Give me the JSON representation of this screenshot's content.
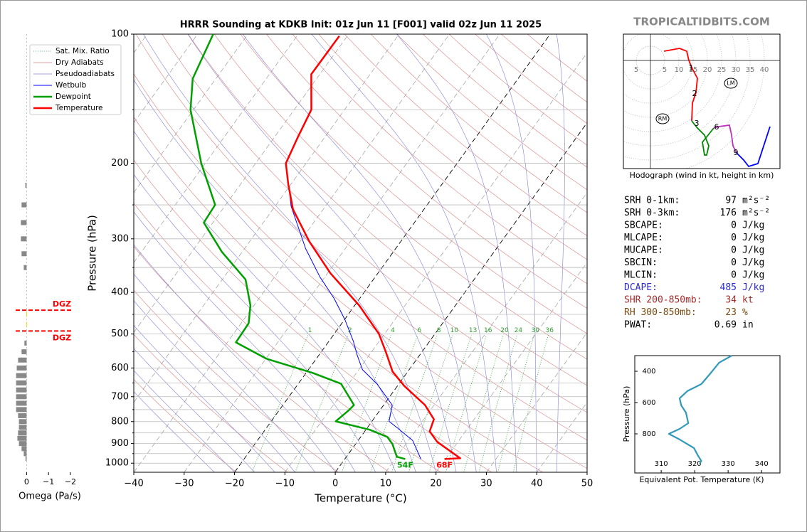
{
  "site": "TROPICALTIDBITS.COM",
  "chart_data": [
    {
      "type": "skewt",
      "title": "HRRR Sounding at KDKB Init: 01z Jun 11 [F001] valid 02z Jun 11 2025",
      "x_label": "Temperature (°C)",
      "y_label": "Pressure (hPa)",
      "log_y": true,
      "xlim": [
        -40,
        50
      ],
      "ylim": [
        1050,
        100
      ],
      "xticks": [
        {
          "value": -40,
          "label": "−40"
        },
        {
          "value": -30,
          "label": "−30"
        },
        {
          "value": -20,
          "label": "−20"
        },
        {
          "value": -10,
          "label": "−10"
        },
        0,
        10,
        20,
        30,
        40,
        50
      ],
      "yticks": [
        100,
        200,
        300,
        400,
        500,
        600,
        700,
        800,
        900,
        1000
      ],
      "yticks_minor": [
        150,
        250,
        350,
        450,
        550,
        650,
        750,
        850,
        950
      ],
      "grid": true,
      "legend": "upper left",
      "reference_lines": [
        {
          "name": "Sat. Mix. Ratio",
          "color": "#2ca02c",
          "values": [
            1,
            2,
            4,
            6,
            8,
            10,
            13,
            16,
            20,
            24,
            30,
            36
          ]
        },
        {
          "name": "Dry Adiabats",
          "color": "#d98080"
        },
        {
          "name": "Pseudoadiabats",
          "color": "#8080d9"
        }
      ],
      "series": [
        {
          "name": "Wetbulb",
          "color": "#0000ff",
          "line_width": 1,
          "pressure": [
            978,
            885,
            830,
            799,
            732,
            653,
            605,
            560,
            519,
            463,
            413,
            368,
            316,
            252,
            200
          ],
          "values": [
            15.1,
            10.8,
            6.2,
            3.4,
            1.7,
            -4.4,
            -9.3,
            -12.4,
            -15.2,
            -19.9,
            -25.1,
            -31.0,
            -37.9,
            -46.8,
            -54.0
          ]
        },
        {
          "name": "Dewpoint",
          "color": "#00a000",
          "line_width": 2.5,
          "surface_label": "54F",
          "pressure": [
            978,
            966,
            902,
            869,
            836,
            799,
            754,
            732,
            653,
            616,
            571,
            523,
            472,
            429,
            373,
            322,
            275,
            250,
            200,
            150,
            127,
            100
          ],
          "values": [
            12.0,
            10.0,
            7.3,
            5.3,
            0.8,
            -7.2,
            -6.2,
            -5.9,
            -11.5,
            -18.7,
            -29.9,
            -38.3,
            -38.5,
            -40.7,
            -45.4,
            -54.0,
            -61.8,
            -62.1,
            -70.8,
            -80.6,
            -84.6,
            -86.9
          ]
        },
        {
          "name": "Temperature",
          "color": "#ff0000",
          "line_width": 2.5,
          "surface_label": "68F",
          "pressure": [
            978,
            974,
            892,
            843,
            790,
            732,
            660,
            612,
            550,
            500,
            429,
            361,
            304,
            256,
            224,
            200,
            175,
            150,
            124,
            101
          ],
          "values": [
            19.8,
            22.8,
            15.9,
            12.9,
            12.0,
            8.2,
            1.3,
            -3.0,
            -7.2,
            -11.1,
            -19.1,
            -29.4,
            -38.2,
            -46.0,
            -50.5,
            -54.0,
            -55.3,
            -56.6,
            -61.7,
            -61.6
          ]
        }
      ]
    },
    {
      "type": "omega",
      "x_label": "Omega (Pa/s)",
      "xlim": [
        0.5,
        -2.1
      ],
      "ylim": [
        1050,
        100
      ],
      "xticks": [
        0,
        {
          "value": -1,
          "label": "−1"
        },
        {
          "value": -2,
          "label": "−2"
        }
      ],
      "color": "#888888",
      "highlight_color": "#ffd700",
      "dgz": [
        440,
        492
      ],
      "dgz_label": "DGZ",
      "dgz_color": "#ff0000",
      "pressure": [
        225,
        250,
        275,
        300,
        325,
        350,
        450,
        475,
        525,
        550,
        575,
        600,
        625,
        650,
        675,
        700,
        725,
        750,
        775,
        800,
        825,
        850,
        875,
        900,
        925,
        950,
        975
      ],
      "values": [
        0.06,
        0.23,
        0.26,
        0.26,
        0.23,
        0.13,
        0.01,
        0.01,
        0.1,
        0.23,
        0.39,
        0.45,
        0.48,
        0.48,
        0.48,
        0.48,
        0.48,
        0.48,
        0.39,
        0.35,
        0.35,
        0.39,
        0.42,
        0.35,
        0.23,
        0.13,
        0.05
      ]
    },
    {
      "type": "hodograph",
      "caption": "Hodograph (wind in kt, height in km)",
      "xlim": [
        -9.5,
        45.5
      ],
      "ylim": [
        -38,
        9.25
      ],
      "rings": [
        {
          "value": -5,
          "label": "5"
        },
        5,
        10,
        15,
        20,
        25,
        30,
        35,
        40
      ],
      "series": [
        {
          "color": "#ff0000",
          "u": [
            4.75,
            10.25,
            12.75,
            13.5,
            14.5,
            16.5,
            16,
            14.75,
            14.5
          ],
          "v": [
            3.25,
            4.25,
            3.25,
            0,
            -2.5,
            -6.25,
            -11.25,
            -15,
            -21.25
          ]
        },
        {
          "color": "#008800",
          "u": [
            14.5,
            16.5,
            19,
            20.5,
            19.75,
            19,
            18.25,
            20.25,
            22.25
          ],
          "v": [
            -21.25,
            -23.75,
            -26.25,
            -30,
            -33.25,
            -33.25,
            -28.75,
            -26.25,
            -23.75
          ]
        },
        {
          "color": "#bb33bb",
          "u": [
            22.25,
            24,
            27.75,
            28.5,
            29,
            30.25
          ],
          "v": [
            -23.75,
            -23.25,
            -22.75,
            -26.25,
            -30,
            -32.5
          ]
        },
        {
          "color": "#0000ff",
          "u": [
            30.25,
            32.75,
            34.5,
            37.75,
            42
          ],
          "v": [
            -32.5,
            -35,
            -37.25,
            -36.25,
            -23.25
          ]
        }
      ],
      "height_labels": [
        {
          "text": "1",
          "u": 14.25,
          "v": -2.75
        },
        {
          "text": "2",
          "u": 15.5,
          "v": -11.75
        },
        {
          "text": "3",
          "u": 16.25,
          "v": -22.25
        },
        {
          "text": "6",
          "u": 23.25,
          "v": -23.5
        },
        {
          "text": "9",
          "u": 30,
          "v": -32.5
        }
      ],
      "markers": [
        {
          "text": "RM",
          "u": 4.25,
          "v": -20.5
        },
        {
          "text": "LM",
          "u": 28.25,
          "v": -8
        }
      ]
    },
    {
      "type": "profile",
      "x_label": "Equivalent Pot. Temperature (K)",
      "y_label": "Pressure (hPa)",
      "xlim": [
        302.1,
        345.5
      ],
      "ylim": [
        1050,
        300
      ],
      "xticks": [
        310,
        320,
        330,
        340
      ],
      "yticks": [
        400,
        600,
        800
      ],
      "color": "#3399bb",
      "pressure": [
        300,
        345,
        414,
        482,
        527,
        573,
        618,
        664,
        732,
        768,
        800,
        836,
        891,
        936,
        973,
        991
      ],
      "values": [
        331.1,
        327.3,
        324.7,
        322,
        317.8,
        315.5,
        316,
        317.4,
        318.1,
        315.5,
        312.3,
        315.5,
        319.8,
        320.9,
        322,
        321.5
      ]
    }
  ],
  "indices": {
    "rows": [
      {
        "label": "SRH 0-1km:",
        "value": 97,
        "unit": "m²s⁻²",
        "color": "#000000"
      },
      {
        "label": "SRH 0-3km:",
        "value": 176,
        "unit": "m²s⁻²",
        "color": "#000000"
      },
      {
        "label": "SBCAPE:",
        "value": 0,
        "unit": "J/kg",
        "color": "#000000"
      },
      {
        "label": "MLCAPE:",
        "value": 0,
        "unit": "J/kg",
        "color": "#000000"
      },
      {
        "label": "MUCAPE:",
        "value": 0,
        "unit": "J/kg",
        "color": "#000000"
      },
      {
        "label": "SBCIN:",
        "value": 0,
        "unit": "J/kg",
        "color": "#000000"
      },
      {
        "label": "MLCIN:",
        "value": 0,
        "unit": "J/kg",
        "color": "#000000"
      },
      {
        "label": "DCAPE:",
        "value": 485,
        "unit": "J/kg",
        "color": "#2b2bd0"
      },
      {
        "label": "SHR 200-850mb:",
        "value": 34,
        "unit": "kt",
        "color": "#a52a2a"
      },
      {
        "label": "RH 300-850mb:",
        "value": 23,
        "unit": "%",
        "color": "#7a4a10"
      },
      {
        "label": "PWAT:",
        "value": 0.69,
        "unit": "in",
        "color": "#000000"
      }
    ]
  }
}
